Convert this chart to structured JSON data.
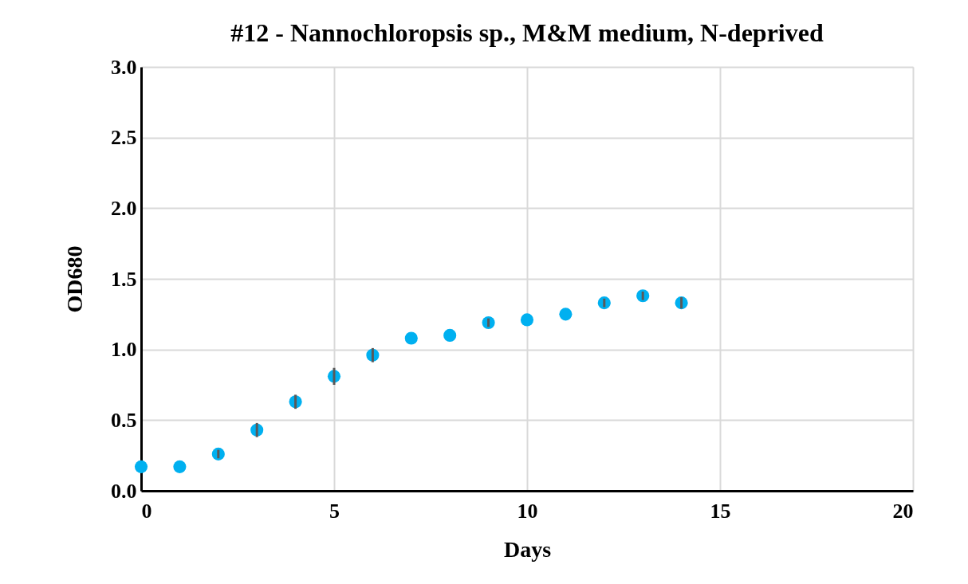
{
  "chart_data": {
    "type": "scatter",
    "title": "#12 - Nannochloropsis sp., M&M medium, N-deprived",
    "xlabel": "Days",
    "ylabel": "OD680",
    "x": [
      0,
      1,
      2,
      3,
      4,
      5,
      6,
      7,
      8,
      9,
      10,
      11,
      12,
      13,
      14
    ],
    "series": [
      {
        "color": "#00b0f0",
        "values": [
          0.17,
          0.17,
          0.26,
          0.43,
          0.63,
          0.81,
          0.96,
          1.08,
          1.1,
          1.19,
          1.21,
          1.25,
          1.33,
          1.38,
          1.33
        ],
        "errors": [
          null,
          null,
          0.03,
          0.05,
          0.05,
          0.06,
          0.05,
          null,
          null,
          0.03,
          null,
          null,
          0.03,
          0.03,
          0.04
        ]
      }
    ],
    "xlim": [
      0,
      20
    ],
    "xticks": [
      0,
      5,
      10,
      15,
      20
    ],
    "ylim": [
      0,
      3
    ],
    "yticks": [
      {
        "value": 0,
        "label": "0.0"
      },
      0.5,
      {
        "value": 1,
        "label": "1.0"
      },
      1.5,
      {
        "value": 2,
        "label": "2.0"
      },
      2.5,
      {
        "value": 3,
        "label": "3.0"
      }
    ],
    "grid": true,
    "marker": "circle",
    "legend": false
  }
}
